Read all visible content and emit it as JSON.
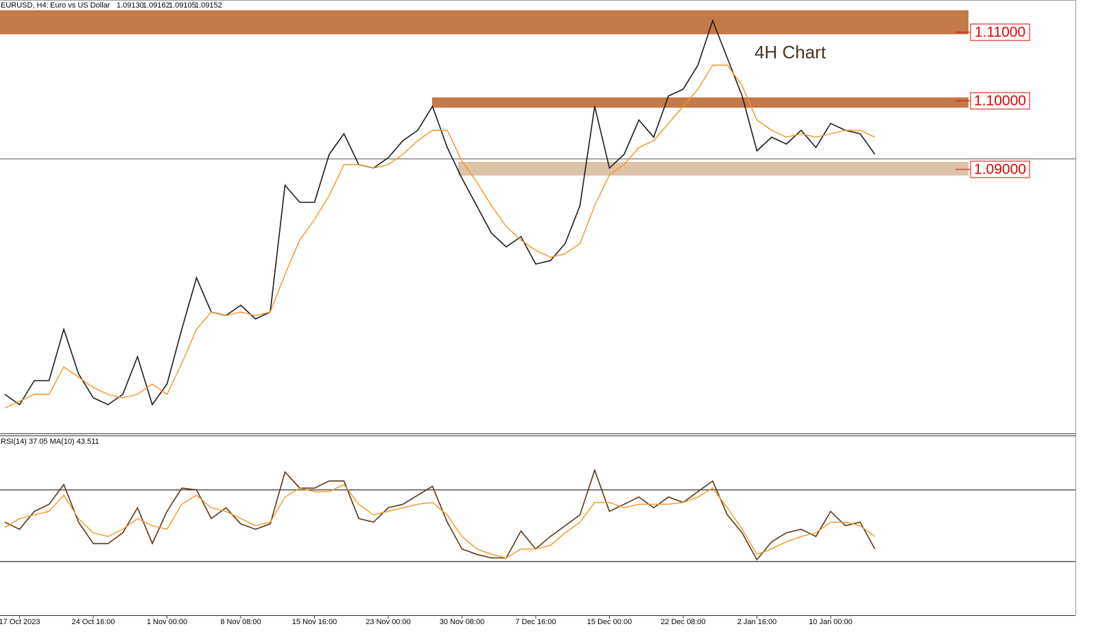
{
  "chart_data": [
    {
      "type": "line",
      "header": {
        "symbol": "EURUSD, H4:",
        "name": "Euro vs US Dollar",
        "open": {
          "value": 1.0913,
          "label": "1.09130"
        },
        "high": {
          "value": 1.09162,
          "label": "1.09162"
        },
        "low": {
          "value": 1.09105,
          "label": "1.09105"
        },
        "close": {
          "value": 1.09152,
          "label": "1.09152"
        }
      },
      "annotation": "4H Chart",
      "categories": [
        null,
        "17 Oct 2023",
        null,
        null,
        null,
        null,
        "24 Oct 16:00",
        null,
        null,
        null,
        null,
        "1 Nov 00:00",
        null,
        null,
        null,
        null,
        "8 Nov 08:00",
        null,
        null,
        null,
        null,
        "15 Nov 16:00",
        null,
        null,
        null,
        null,
        "23 Nov 00:00",
        null,
        null,
        null,
        null,
        "30 Nov 08:00",
        null,
        null,
        null,
        null,
        "7 Dec 16:00",
        null,
        null,
        null,
        null,
        "15 Dec 00:00",
        null,
        null,
        null,
        null,
        "22 Dec 08:00",
        null,
        null,
        null,
        null,
        "2 Jan 16:00",
        null,
        null,
        null,
        null,
        "10 Jan 00:00",
        null,
        null,
        null
      ],
      "series": [
        {
          "color": "#1a1a1a",
          "values": [
            1.0572,
            1.0557,
            1.0592,
            1.0592,
            1.0667,
            1.0602,
            1.0567,
            1.0557,
            1.0572,
            1.0627,
            1.0557,
            1.0587,
            1.0667,
            1.0742,
            1.0692,
            1.0687,
            1.0702,
            1.0682,
            1.0692,
            1.0877,
            1.0852,
            1.0852,
            1.0922,
            1.0952,
            1.0907,
            1.0902,
            1.0917,
            1.0942,
            1.0957,
            1.0992,
            1.0932,
            1.0887,
            1.0847,
            1.0807,
            1.0787,
            1.0802,
            1.0762,
            1.0767,
            1.0792,
            1.0847,
            1.0992,
            1.0902,
            1.0922,
            1.0972,
            1.0947,
            1.1007,
            1.1017,
            1.1052,
            1.1117,
            1.1062,
            1.1007,
            1.0927,
            1.0947,
            1.0937,
            1.0957,
            1.0932,
            1.0967,
            1.0957,
            1.0952,
            1.0922
          ]
        },
        {
          "color": "#f7931e",
          "values": [
            1.0552,
            1.0562,
            1.0572,
            1.0572,
            1.0612,
            1.0597,
            1.0582,
            1.0572,
            1.0567,
            1.0572,
            1.0587,
            1.0572,
            1.0617,
            1.0667,
            1.0692,
            1.0687,
            1.0692,
            1.0687,
            1.0692,
            1.0747,
            1.0797,
            1.0827,
            1.0862,
            1.0907,
            1.0907,
            1.0902,
            1.0907,
            1.0922,
            1.0942,
            1.0957,
            1.0957,
            1.0912,
            1.0882,
            1.0847,
            1.0817,
            1.0797,
            1.0782,
            1.0772,
            1.0777,
            1.0792,
            1.0847,
            1.0892,
            1.0907,
            1.0932,
            1.0942,
            1.0967,
            1.0992,
            1.1017,
            1.1052,
            1.1052,
            1.1022,
            1.0972,
            1.0957,
            1.0947,
            1.0952,
            1.0947,
            1.0952,
            1.0957,
            1.0957,
            1.0947
          ]
        }
      ],
      "ylim": [
        1.0514,
        1.1147
      ],
      "zones": [
        {
          "from": 1.1097,
          "to": 1.1132,
          "color": "#c47a48",
          "label": {
            "value": 1.11,
            "label": "1.11000"
          }
        },
        {
          "from": 1.099,
          "to": 1.1005,
          "color": "#c47a48",
          "label": {
            "value": 1.1,
            "label": "1.10000"
          }
        },
        {
          "from": 1.0891,
          "to": 1.0911,
          "color": "#dcc3a8",
          "label": {
            "value": 1.09,
            "label": "1.09000"
          }
        }
      ]
    },
    {
      "type": "line",
      "label": "RSI(14) 37.05 MA(10) 43.511",
      "series": [
        {
          "color": "#5a3312",
          "values": [
            52,
            48,
            58,
            62,
            73,
            52,
            40,
            40,
            46,
            60,
            40,
            58,
            71,
            70,
            54,
            60,
            51,
            48,
            51,
            80,
            71,
            71,
            75,
            75,
            54,
            52,
            60,
            62,
            67,
            72,
            52,
            37,
            34,
            32,
            32,
            47,
            37,
            44,
            50,
            56,
            81,
            58,
            62,
            66,
            60,
            66,
            63,
            69,
            75,
            56,
            46,
            31,
            41,
            46,
            48,
            44,
            58,
            50,
            52,
            37
          ]
        },
        {
          "color": "#f7931e",
          "values": [
            49,
            54,
            56,
            58,
            67,
            54,
            46,
            44,
            48,
            54,
            50,
            48,
            62,
            67,
            60,
            58,
            54,
            50,
            52,
            66,
            71,
            69,
            69,
            73,
            62,
            56,
            58,
            60,
            62,
            63,
            56,
            44,
            37,
            34,
            32,
            37,
            37,
            39,
            46,
            52,
            63,
            63,
            60,
            62,
            62,
            62,
            63,
            66,
            71,
            60,
            48,
            34,
            37,
            41,
            44,
            46,
            52,
            52,
            50,
            44
          ]
        }
      ],
      "ylim": [
        0,
        100
      ],
      "levels": [
        30,
        70
      ]
    }
  ]
}
